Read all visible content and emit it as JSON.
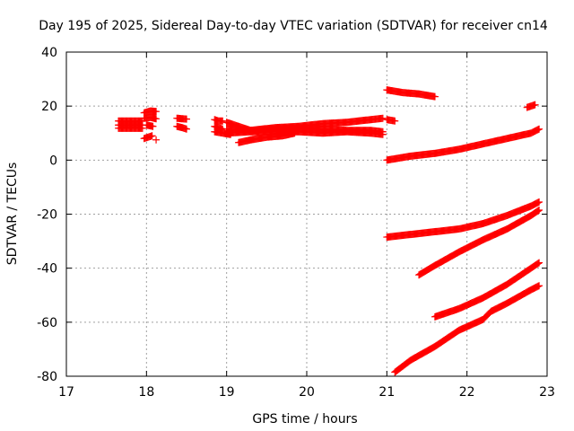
{
  "chart_data": {
    "type": "scatter",
    "title": "Day 195 of 2025, Sidereal Day-to-day VTEC variation (SDTVAR) for receiver cn14",
    "xlabel": "GPS time / hours",
    "ylabel": "SDTVAR / TECUs",
    "xlim": [
      17,
      23
    ],
    "ylim": [
      -80,
      40
    ],
    "x_ticks": [
      "17",
      "18",
      "19",
      "20",
      "21",
      "22",
      "23"
    ],
    "y_ticks": [
      "40",
      "20",
      "0",
      "-20",
      "-40",
      "-60",
      "-80"
    ],
    "grid": true,
    "legend": "none",
    "marker": "plus",
    "color": "#ff0000",
    "series": [
      {
        "x": [
          17.65,
          17.75,
          17.85,
          17.95
        ],
        "y": [
          14.5,
          14.5,
          14.5,
          14.5
        ]
      },
      {
        "x": [
          17.65,
          17.75,
          17.85,
          17.95
        ],
        "y": [
          13.0,
          13.0,
          13.0,
          13.0
        ]
      },
      {
        "x": [
          17.65,
          17.75,
          17.85,
          17.95
        ],
        "y": [
          11.8,
          11.8,
          11.8,
          11.8
        ]
      },
      {
        "x": [
          17.97,
          18.05,
          18.12
        ],
        "y": [
          17.5,
          18.2,
          18.0
        ]
      },
      {
        "x": [
          17.97,
          18.05,
          18.12
        ],
        "y": [
          15.5,
          15.8,
          15.3
        ]
      },
      {
        "x": [
          18.0,
          18.08
        ],
        "y": [
          13.0,
          12.5
        ]
      },
      {
        "x": [
          17.97,
          18.07
        ],
        "y": [
          8.0,
          9.0
        ]
      },
      {
        "x": [
          18.12
        ],
        "y": [
          7.5
        ]
      },
      {
        "x": [
          18.38,
          18.45,
          18.5
        ],
        "y": [
          15.5,
          15.3,
          15.2
        ]
      },
      {
        "x": [
          18.38,
          18.45,
          18.5
        ],
        "y": [
          12.5,
          12.0,
          11.5
        ]
      },
      {
        "x": [
          18.85,
          18.9,
          18.95
        ],
        "y": [
          15.0,
          14.5,
          14.5
        ]
      },
      {
        "x": [
          18.85,
          18.9,
          18.95
        ],
        "y": [
          12.5,
          12.0,
          11.5
        ]
      },
      {
        "x": [
          18.85,
          18.95,
          19.05
        ],
        "y": [
          10.5,
          10.0,
          9.5
        ]
      },
      {
        "x": [
          19.0,
          19.3,
          19.6,
          19.9,
          20.2,
          20.5,
          20.8,
          20.95
        ],
        "y": [
          14.0,
          11.0,
          12.0,
          12.5,
          13.5,
          14.0,
          15.0,
          15.5
        ]
      },
      {
        "x": [
          19.0,
          19.3,
          19.6,
          19.9,
          20.2,
          20.5,
          20.8,
          20.95
        ],
        "y": [
          11.5,
          11.0,
          11.5,
          12.0,
          11.5,
          11.0,
          11.0,
          10.5
        ]
      },
      {
        "x": [
          19.0,
          19.3,
          19.6,
          19.9,
          20.2,
          20.5,
          20.8,
          20.95
        ],
        "y": [
          10.0,
          10.5,
          10.5,
          10.5,
          10.0,
          10.5,
          10.0,
          9.5
        ]
      },
      {
        "x": [
          19.15,
          19.3,
          19.5,
          19.7,
          19.85
        ],
        "y": [
          6.5,
          7.5,
          8.5,
          9.0,
          10.0
        ]
      },
      {
        "x": [
          21.0,
          21.1
        ],
        "y": [
          15.0,
          14.5
        ]
      },
      {
        "x": [
          21.0,
          21.2,
          21.4,
          21.6
        ],
        "y": [
          26.0,
          25.0,
          24.5,
          23.5
        ]
      },
      {
        "x": [
          22.75,
          22.85
        ],
        "y": [
          19.5,
          20.5
        ]
      },
      {
        "x": [
          21.0,
          21.3,
          21.6,
          21.9,
          22.2,
          22.5,
          22.8,
          22.9
        ],
        "y": [
          0.0,
          1.5,
          2.5,
          4.0,
          6.0,
          8.0,
          10.0,
          11.5
        ]
      },
      {
        "x": [
          21.0,
          21.3,
          21.6,
          21.9,
          22.2,
          22.5,
          22.8,
          22.9
        ],
        "y": [
          -28.5,
          -27.5,
          -26.5,
          -25.5,
          -23.5,
          -20.5,
          -17.0,
          -15.5
        ]
      },
      {
        "x": [
          21.4,
          21.6,
          21.9,
          22.2,
          22.5,
          22.8,
          22.9
        ],
        "y": [
          -42.5,
          -39.0,
          -34.0,
          -29.5,
          -25.5,
          -20.5,
          -18.5
        ]
      },
      {
        "x": [
          21.6,
          21.9,
          22.2,
          22.5,
          22.8,
          22.9
        ],
        "y": [
          -58.0,
          -55.0,
          -51.0,
          -46.0,
          -40.0,
          -38.0
        ]
      },
      {
        "x": [
          21.1,
          21.3,
          21.6,
          21.9,
          22.2,
          22.3,
          22.5,
          22.8,
          22.9
        ],
        "y": [
          -78.5,
          -74.0,
          -69.0,
          -63.0,
          -59.0,
          -56.0,
          -53.0,
          -48.0,
          -46.5
        ]
      }
    ]
  }
}
